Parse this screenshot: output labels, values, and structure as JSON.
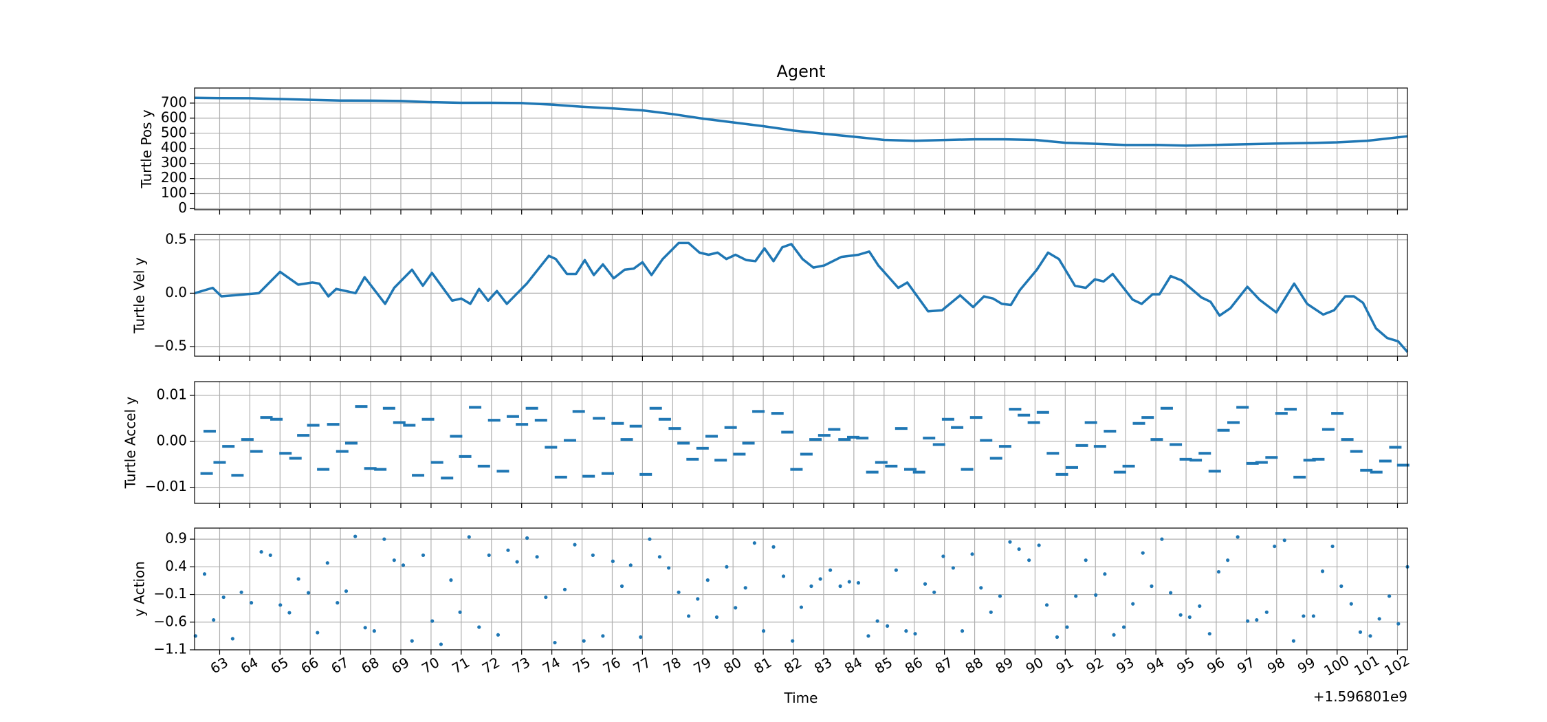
{
  "chart_data": [
    {
      "type": "line",
      "title": "Agent",
      "ylabel": "Turtle Pos y",
      "color": "#1f77b4",
      "grid": true,
      "xlim": [
        62.17,
        102.33
      ],
      "ylim": [
        -7,
        800
      ],
      "yticks": [
        0,
        100,
        200,
        300,
        400,
        500,
        600,
        700
      ],
      "x": [
        62.17,
        63,
        64,
        65,
        66,
        67,
        68,
        69,
        70,
        71,
        72,
        73,
        74,
        75,
        76,
        77,
        78,
        79,
        80,
        81,
        82,
        83,
        84,
        85,
        86,
        87,
        88,
        89,
        90,
        91,
        92,
        93,
        94,
        95,
        96,
        97,
        98,
        99,
        100,
        101,
        102.33
      ],
      "values": [
        735,
        733,
        732,
        727,
        722,
        717,
        716,
        714,
        706,
        702,
        702,
        700,
        690,
        676,
        665,
        652,
        627,
        597,
        572,
        547,
        518,
        497,
        477,
        456,
        450,
        455,
        460,
        460,
        456,
        437,
        430,
        422,
        423,
        418,
        423,
        427,
        432,
        435,
        440,
        450,
        480
      ]
    },
    {
      "type": "line",
      "ylabel": "Turtle Vel y",
      "color": "#1f77b4",
      "grid": true,
      "xlim": [
        62.17,
        102.33
      ],
      "ylim": [
        -0.59,
        0.55
      ],
      "yticks": [
        {
          "value": -0.5,
          "label": "−0.5"
        },
        {
          "value": 0,
          "label": "0.0"
        },
        0.5
      ],
      "x": [
        62.17,
        62.77,
        63.06,
        64.3,
        65.0,
        65.6,
        66.07,
        66.3,
        66.6,
        66.86,
        67.5,
        67.8,
        68.48,
        68.78,
        69.37,
        69.73,
        70.03,
        70.7,
        71.0,
        71.3,
        71.59,
        71.89,
        72.18,
        72.51,
        73.17,
        73.9,
        74.13,
        74.5,
        74.8,
        75.09,
        75.39,
        75.69,
        76.05,
        76.41,
        76.71,
        77.0,
        77.3,
        77.67,
        78.2,
        78.53,
        78.89,
        79.19,
        79.49,
        79.78,
        80.08,
        80.44,
        80.74,
        81.04,
        81.34,
        81.63,
        81.93,
        82.3,
        82.66,
        83.02,
        83.59,
        84.15,
        84.51,
        84.81,
        85.47,
        85.77,
        86.46,
        86.92,
        87.52,
        87.95,
        88.31,
        88.61,
        88.9,
        89.2,
        89.5,
        90.06,
        90.43,
        90.79,
        91.32,
        91.68,
        91.98,
        92.27,
        92.57,
        93.23,
        93.53,
        93.89,
        94.12,
        94.49,
        94.85,
        95.51,
        95.81,
        96.11,
        96.47,
        97.03,
        97.43,
        97.99,
        98.58,
        99.01,
        99.54,
        99.9,
        100.27,
        100.56,
        100.86,
        101.29,
        101.66,
        102.02,
        102.33
      ],
      "values": [
        0.0,
        0.05,
        -0.03,
        0.0,
        0.2,
        0.08,
        0.1,
        0.09,
        -0.03,
        0.04,
        0.0,
        0.15,
        -0.1,
        0.05,
        0.22,
        0.07,
        0.19,
        -0.07,
        -0.05,
        -0.1,
        0.04,
        -0.07,
        0.02,
        -0.1,
        0.09,
        0.35,
        0.32,
        0.18,
        0.18,
        0.31,
        0.17,
        0.27,
        0.14,
        0.22,
        0.23,
        0.29,
        0.17,
        0.32,
        0.47,
        0.47,
        0.38,
        0.36,
        0.38,
        0.32,
        0.36,
        0.31,
        0.3,
        0.42,
        0.3,
        0.43,
        0.46,
        0.32,
        0.24,
        0.26,
        0.34,
        0.36,
        0.39,
        0.26,
        0.05,
        0.1,
        -0.17,
        -0.16,
        -0.02,
        -0.13,
        -0.03,
        -0.05,
        -0.1,
        -0.11,
        0.03,
        0.22,
        0.38,
        0.32,
        0.07,
        0.05,
        0.13,
        0.11,
        0.18,
        -0.06,
        -0.1,
        -0.01,
        -0.01,
        0.16,
        0.12,
        -0.04,
        -0.08,
        -0.21,
        -0.14,
        0.06,
        -0.06,
        -0.18,
        0.09,
        -0.1,
        -0.2,
        -0.16,
        -0.03,
        -0.03,
        -0.09,
        -0.33,
        -0.42,
        -0.45,
        -0.55
      ]
    },
    {
      "type": "scatter",
      "marker": "hline",
      "ylabel": "Turtle Accel y",
      "color": "#1f77b4",
      "grid": true,
      "xlim": [
        62.17,
        102.33
      ],
      "ylim": [
        -0.0135,
        0.013
      ],
      "yticks": [
        {
          "value": -0.01,
          "label": "−0.01"
        },
        {
          "value": 0,
          "label": "0.00"
        },
        0.01
      ],
      "x": [
        62.57,
        62.67,
        63.0,
        63.29,
        63.59,
        63.92,
        64.22,
        64.55,
        64.88,
        65.18,
        65.51,
        65.77,
        66.1,
        66.43,
        66.76,
        67.06,
        67.36,
        67.69,
        67.99,
        68.32,
        68.61,
        68.95,
        69.28,
        69.57,
        69.9,
        70.2,
        70.53,
        70.83,
        71.13,
        71.46,
        71.75,
        72.09,
        72.38,
        72.71,
        73.01,
        73.34,
        73.64,
        73.97,
        74.3,
        74.6,
        74.89,
        75.22,
        75.56,
        75.85,
        76.18,
        76.48,
        76.78,
        77.11,
        77.44,
        77.74,
        78.07,
        78.36,
        78.66,
        78.99,
        79.29,
        79.59,
        79.92,
        80.21,
        80.51,
        80.84,
        81.47,
        81.8,
        82.1,
        82.43,
        82.73,
        83.02,
        83.35,
        83.69,
        83.98,
        84.28,
        84.61,
        84.91,
        85.24,
        85.57,
        85.87,
        86.16,
        86.49,
        86.82,
        87.12,
        87.42,
        87.75,
        88.05,
        88.38,
        88.71,
        89.01,
        89.34,
        89.63,
        89.96,
        90.26,
        90.59,
        90.89,
        91.22,
        91.55,
        91.85,
        92.15,
        92.48,
        92.81,
        93.1,
        93.44,
        93.73,
        94.03,
        94.36,
        94.66,
        94.99,
        95.32,
        95.62,
        95.95,
        96.24,
        96.57,
        96.87,
        97.2,
        97.5,
        97.83,
        98.16,
        98.46,
        98.76,
        99.09,
        99.38,
        99.71,
        100.01,
        100.34,
        100.64,
        100.97,
        101.3,
        101.6,
        101.93,
        102.19
      ],
      "values": [
        -0.007,
        0.0022,
        -0.0046,
        -0.0011,
        -0.0074,
        0.0004,
        -0.0022,
        0.0052,
        0.0048,
        -0.0026,
        -0.0037,
        0.0013,
        0.0035,
        -0.0061,
        0.0037,
        -0.0022,
        -0.0004,
        0.0076,
        -0.0059,
        -0.0061,
        0.0072,
        0.0041,
        0.0035,
        -0.0074,
        0.0048,
        -0.0046,
        -0.008,
        0.0011,
        -0.0033,
        0.0074,
        -0.0054,
        0.0046,
        -0.0065,
        0.0054,
        0.0037,
        0.0072,
        0.0046,
        -0.0013,
        -0.0078,
        0.0002,
        0.0065,
        -0.0076,
        0.005,
        -0.007,
        0.0039,
        0.0004,
        0.0033,
        -0.0072,
        0.0072,
        0.0048,
        0.0028,
        -0.0004,
        -0.0039,
        -0.0015,
        0.0011,
        -0.0041,
        0.003,
        -0.0028,
        -0.0004,
        0.0065,
        0.0061,
        0.002,
        -0.0061,
        -0.0028,
        0.0004,
        0.0013,
        0.0026,
        0.0004,
        0.0009,
        0.0007,
        -0.0067,
        -0.0046,
        -0.0054,
        0.0028,
        -0.0061,
        -0.0067,
        0.0007,
        -0.0007,
        0.0048,
        0.003,
        -0.0061,
        0.0052,
        0.0002,
        -0.0037,
        -0.0011,
        0.007,
        0.0057,
        0.0041,
        0.0063,
        -0.0026,
        -0.0072,
        -0.0057,
        -0.0009,
        0.0041,
        -0.0011,
        0.0022,
        -0.0067,
        -0.0054,
        0.0039,
        0.0052,
        0.0004,
        0.0072,
        -0.0007,
        -0.0039,
        -0.0041,
        -0.0026,
        -0.0065,
        0.0024,
        0.0041,
        0.0074,
        -0.0048,
        -0.0046,
        -0.0035,
        0.0061,
        0.007,
        -0.0078,
        -0.0041,
        -0.0039,
        0.0026,
        0.0061,
        0.0004,
        -0.0022,
        -0.0063,
        -0.0067,
        -0.0043,
        -0.0013,
        -0.0052
      ]
    },
    {
      "type": "scatter",
      "marker": "dot",
      "ylabel": "y Action",
      "xlabel": "Time",
      "x_offset_label": "+1.596801e9",
      "color": "#1f77b4",
      "grid": true,
      "xlim": [
        62.17,
        102.33
      ],
      "ylim": [
        -1.1,
        1.1
      ],
      "yticks": [
        {
          "value": -1.1,
          "label": "−1.1"
        },
        {
          "value": -0.6,
          "label": "−0.6"
        },
        {
          "value": -0.1,
          "label": "−0.1"
        },
        0.4,
        0.9
      ],
      "xticks": [
        63,
        64,
        65,
        66,
        67,
        68,
        69,
        70,
        71,
        72,
        73,
        74,
        75,
        76,
        77,
        78,
        79,
        80,
        81,
        82,
        83,
        84,
        85,
        86,
        87,
        88,
        89,
        90,
        91,
        92,
        93,
        94,
        95,
        96,
        97,
        98,
        99,
        100,
        101,
        102
      ],
      "x": [
        62.2,
        62.5,
        62.8,
        63.13,
        63.43,
        63.72,
        64.05,
        64.38,
        64.68,
        65.01,
        65.31,
        65.61,
        65.94,
        66.24,
        66.57,
        66.9,
        67.19,
        67.49,
        67.82,
        68.12,
        68.45,
        68.78,
        69.08,
        69.37,
        69.74,
        70.04,
        70.33,
        70.66,
        70.96,
        71.26,
        71.59,
        71.92,
        72.22,
        72.55,
        72.85,
        73.18,
        73.51,
        73.8,
        74.1,
        74.43,
        74.76,
        75.06,
        75.36,
        75.69,
        76.02,
        76.32,
        76.61,
        76.94,
        77.24,
        77.57,
        77.87,
        78.2,
        78.53,
        78.83,
        79.16,
        79.46,
        79.79,
        80.08,
        80.41,
        80.71,
        81.01,
        81.34,
        81.67,
        81.97,
        82.26,
        82.59,
        82.89,
        83.22,
        83.55,
        83.85,
        84.15,
        84.48,
        84.78,
        85.11,
        85.4,
        85.73,
        86.03,
        86.36,
        86.66,
        86.96,
        87.29,
        87.59,
        87.92,
        88.21,
        88.54,
        88.84,
        89.17,
        89.47,
        89.8,
        90.13,
        90.39,
        90.73,
        91.06,
        91.35,
        91.68,
        92.01,
        92.31,
        92.61,
        92.94,
        93.24,
        93.57,
        93.86,
        94.2,
        94.49,
        94.82,
        95.12,
        95.45,
        95.78,
        96.08,
        96.38,
        96.71,
        97.04,
        97.34,
        97.67,
        97.93,
        98.26,
        98.56,
        98.89,
        99.22,
        99.52,
        99.85,
        100.14,
        100.47,
        100.77,
        101.1,
        101.4,
        101.73,
        102.03,
        102.33
      ],
      "values": [
        -0.85,
        0.27,
        -0.56,
        -0.15,
        -0.9,
        -0.06,
        -0.25,
        0.67,
        0.61,
        -0.29,
        -0.43,
        0.18,
        -0.07,
        -0.79,
        0.47,
        -0.25,
        -0.04,
        0.95,
        -0.7,
        -0.76,
        0.9,
        0.52,
        0.43,
        -0.94,
        0.61,
        -0.58,
        -1.0,
        0.16,
        -0.42,
        0.94,
        -0.69,
        0.61,
        -0.83,
        0.7,
        0.49,
        0.92,
        0.58,
        -0.15,
        -0.97,
        -0.01,
        0.8,
        -0.94,
        0.61,
        -0.85,
        0.5,
        0.05,
        0.43,
        -0.87,
        0.9,
        0.58,
        0.38,
        -0.06,
        -0.49,
        -0.18,
        0.16,
        -0.51,
        0.4,
        -0.34,
        0.02,
        0.83,
        -0.76,
        0.76,
        0.23,
        -0.94,
        -0.33,
        0.05,
        0.18,
        0.34,
        0.05,
        0.13,
        0.11,
        -0.85,
        -0.58,
        -0.67,
        0.34,
        -0.76,
        -0.81,
        0.09,
        -0.06,
        0.59,
        0.38,
        -0.76,
        0.63,
        0.02,
        -0.42,
        -0.13,
        0.85,
        0.72,
        0.52,
        0.79,
        -0.29,
        -0.87,
        -0.69,
        -0.13,
        0.52,
        -0.11,
        0.27,
        -0.83,
        -0.69,
        -0.27,
        0.65,
        0.05,
        0.9,
        -0.07,
        -0.47,
        -0.51,
        -0.31,
        -0.81,
        0.31,
        0.52,
        0.94,
        -0.58,
        -0.56,
        -0.42,
        0.77,
        0.88,
        -0.94,
        -0.49,
        -0.49,
        0.32,
        0.77,
        0.05,
        -0.27,
        -0.78,
        -0.85,
        -0.54,
        -0.13,
        -0.63,
        0.4
      ]
    }
  ]
}
